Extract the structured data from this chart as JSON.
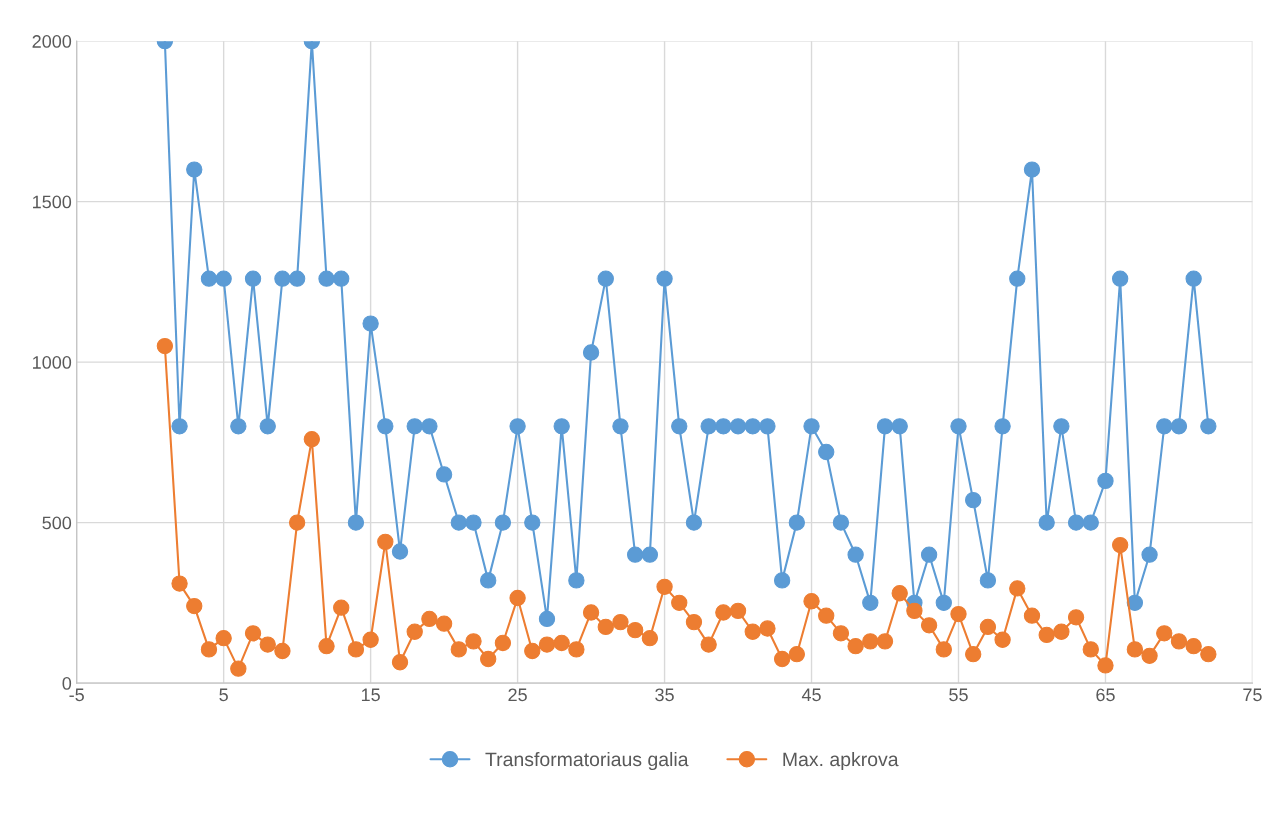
{
  "chart_data": {
    "type": "line",
    "x": [
      1,
      2,
      3,
      4,
      5,
      6,
      7,
      8,
      9,
      10,
      11,
      12,
      13,
      14,
      15,
      16,
      17,
      18,
      19,
      20,
      21,
      22,
      23,
      24,
      25,
      26,
      27,
      28,
      29,
      30,
      31,
      32,
      33,
      34,
      35,
      36,
      37,
      38,
      39,
      40,
      41,
      42,
      43,
      44,
      45,
      46,
      47,
      48,
      49,
      50,
      51,
      52,
      53,
      54,
      55,
      56,
      57,
      58,
      59,
      60,
      61,
      62,
      63,
      64,
      65,
      66,
      67,
      68,
      69,
      70,
      71,
      72
    ],
    "series": [
      {
        "name": "Transformatoriaus galia",
        "color": "#5b9bd5",
        "values": [
          2000,
          800,
          1600,
          1260,
          1260,
          800,
          1260,
          800,
          1260,
          1260,
          2000,
          1260,
          1260,
          500,
          1120,
          800,
          410,
          800,
          800,
          650,
          500,
          500,
          320,
          500,
          800,
          500,
          200,
          800,
          320,
          1030,
          1260,
          800,
          400,
          400,
          1260,
          800,
          500,
          800,
          800,
          800,
          800,
          800,
          320,
          500,
          800,
          720,
          500,
          400,
          250,
          800,
          800,
          250,
          400,
          250,
          800,
          570,
          320,
          800,
          1260,
          1600,
          500,
          800,
          500,
          500,
          630,
          1260,
          250,
          400,
          800,
          800,
          1260,
          800
        ]
      },
      {
        "name": "Max. apkrova",
        "color": "#ed7d31",
        "values": [
          1050,
          310,
          240,
          105,
          140,
          45,
          155,
          120,
          100,
          500,
          760,
          115,
          235,
          105,
          135,
          440,
          65,
          160,
          200,
          185,
          105,
          130,
          75,
          125,
          265,
          100,
          120,
          125,
          105,
          220,
          175,
          190,
          165,
          140,
          300,
          250,
          190,
          120,
          220,
          225,
          160,
          170,
          75,
          90,
          255,
          210,
          155,
          115,
          130,
          130,
          280,
          225,
          180,
          105,
          215,
          90,
          175,
          135,
          295,
          210,
          150,
          160,
          205,
          105,
          55,
          430,
          105,
          85,
          155,
          130,
          115,
          90
        ]
      }
    ],
    "xlim": [
      -5,
      75
    ],
    "xticks": [
      -5,
      5,
      15,
      25,
      35,
      45,
      55,
      65,
      75
    ],
    "ylim": [
      0,
      2000
    ],
    "yticks": [
      0,
      500,
      1000,
      1500,
      2000
    ],
    "grid": true,
    "legend": "bottom",
    "marker": "circle",
    "line_style": "solid"
  }
}
